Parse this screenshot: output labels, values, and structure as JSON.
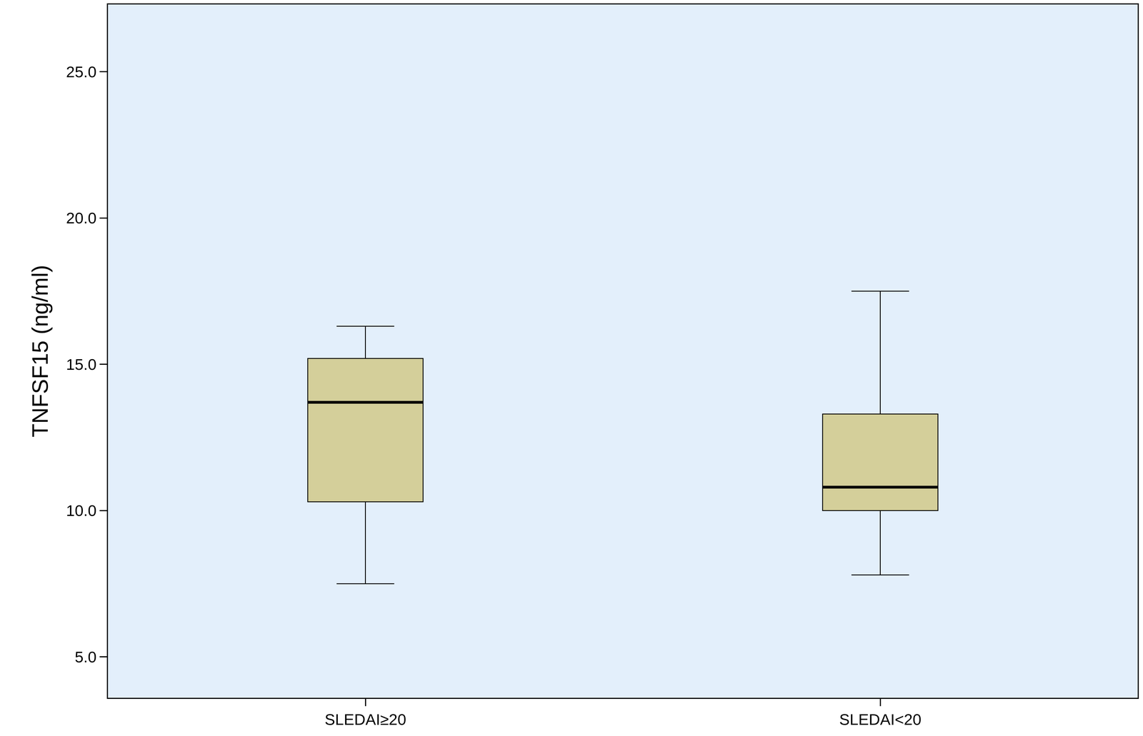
{
  "chart_data": {
    "type": "box",
    "y_label": "TNFSF15 (ng/ml)",
    "categories": [
      "SLEDAI≥20",
      "SLEDAI<20"
    ],
    "whisker_low": [
      7.5,
      7.8
    ],
    "q1": [
      10.3,
      10.0
    ],
    "median": [
      13.7,
      10.8
    ],
    "q3": [
      15.2,
      13.3
    ],
    "whisker_high": [
      16.3,
      17.5
    ],
    "color": "#d4cf9a",
    "ylim": [
      3.6,
      27.3
    ],
    "yticks": [
      {
        "value": 5,
        "label": "5.0"
      },
      {
        "value": 10,
        "label": "10.0"
      },
      {
        "value": 15,
        "label": "15.0"
      },
      {
        "value": 20,
        "label": "20.0"
      },
      {
        "value": 25,
        "label": "25.0"
      }
    ],
    "grid": false
  }
}
